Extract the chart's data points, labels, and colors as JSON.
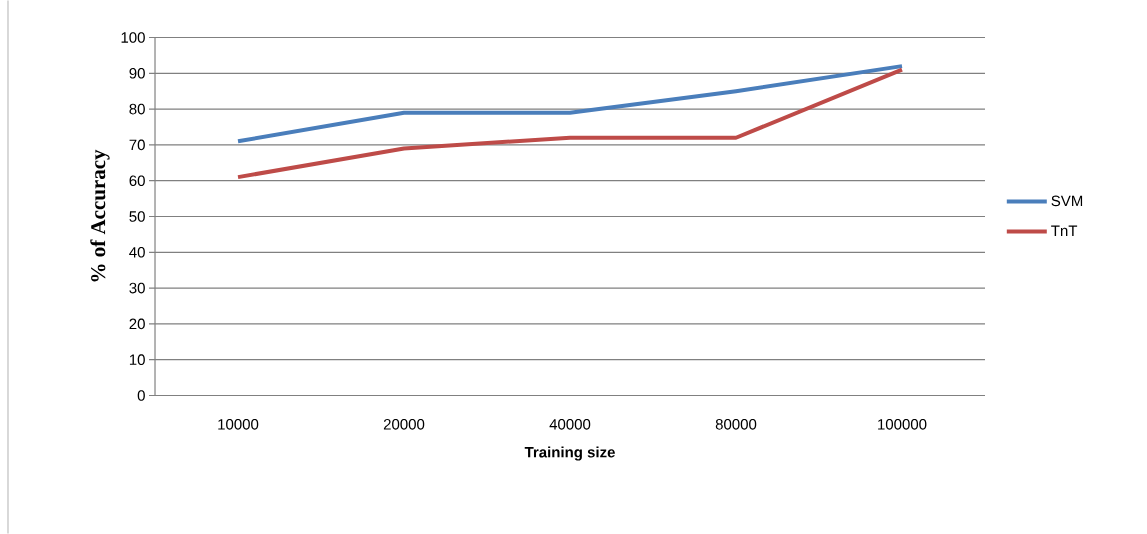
{
  "chart_data": {
    "type": "line",
    "xlabel": "Training size",
    "ylabel": "% of Accuracy",
    "categories": [
      "10000",
      "20000",
      "40000",
      "80000",
      "100000"
    ],
    "series": [
      {
        "name": "SVM",
        "color": "#4a7ebb",
        "values": [
          71,
          79,
          79,
          85,
          92
        ]
      },
      {
        "name": "TnT",
        "color": "#be4b48",
        "values": [
          61,
          69,
          72,
          72,
          91
        ]
      }
    ],
    "ylim": [
      0,
      100
    ],
    "yticks": [
      0,
      10,
      20,
      30,
      40,
      50,
      60,
      70,
      80,
      90,
      100
    ],
    "grid": "y",
    "legend": "right",
    "marker": "none",
    "line_style": "solid"
  }
}
